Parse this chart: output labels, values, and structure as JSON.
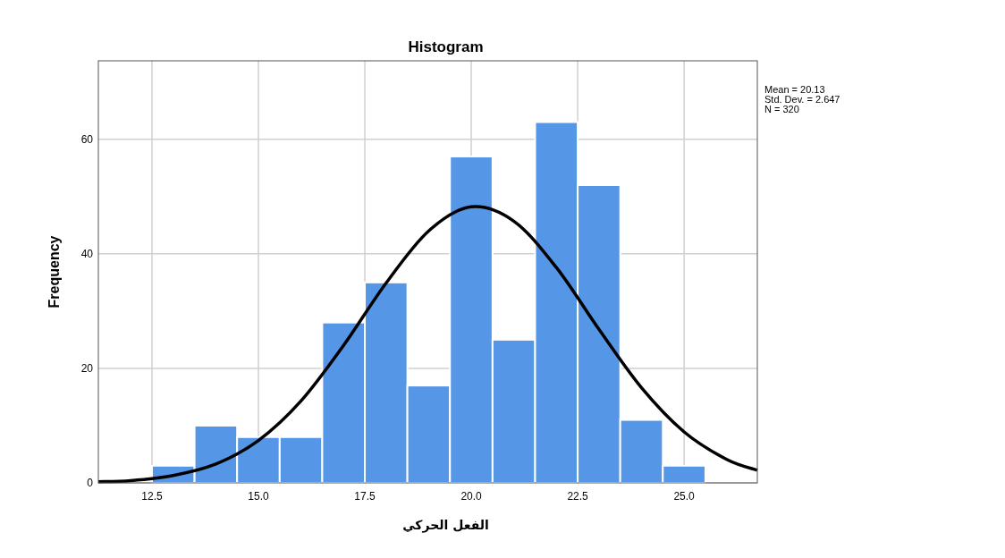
{
  "chart_data": {
    "type": "histogram",
    "title": "Histogram",
    "xlabel": "الفعل الحركي",
    "ylabel": "Frequency",
    "annotations": [
      "Mean = 20.13",
      "Std. Dev. = 2.647",
      "N = 320"
    ],
    "xlim": [
      11.24,
      26.72
    ],
    "ylim": [
      0,
      73.7
    ],
    "xticks": [
      12.5,
      {
        "value": 15,
        "label": "15.0"
      },
      17.5,
      {
        "value": 20,
        "label": "20.0"
      },
      22.5,
      {
        "value": 25,
        "label": "25.0"
      }
    ],
    "yticks": [
      0,
      20,
      40,
      60
    ],
    "grid": true,
    "series": [
      {
        "type": "histogram",
        "color": "#5596e6",
        "bins": [
          12.5,
          13.5,
          14.5,
          15.5,
          16.5,
          17.5,
          18.5,
          19.5,
          20.5,
          21.5,
          22.5,
          23.5,
          24.5,
          25.5
        ],
        "values": [
          3,
          10,
          8,
          8,
          28,
          35,
          17,
          57,
          25,
          63,
          52,
          11,
          3
        ]
      },
      {
        "type": "line",
        "color": "#000000",
        "x": [
          11.24,
          12,
          13,
          14,
          15,
          16,
          17,
          18,
          19,
          20,
          21,
          22,
          23,
          24,
          25,
          26,
          26.72
        ],
        "values": [
          0.2,
          0.4,
          1.3,
          3.3,
          7.4,
          14.3,
          24,
          34.9,
          44,
          48.2,
          45.7,
          37.6,
          26.8,
          16.6,
          8.9,
          4.1,
          2.2
        ]
      }
    ]
  }
}
